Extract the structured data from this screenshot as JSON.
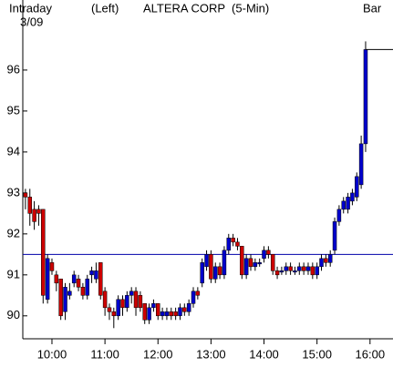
{
  "chart_data": {
    "type": "candlestick",
    "period": "Intraday",
    "date": "3/09",
    "axis_side": "(Left)",
    "title": "ALTERA CORP  (5-Min)",
    "chart_style": "Bar",
    "x": [
      570,
      575,
      580,
      585,
      590,
      595,
      600,
      605,
      610,
      615,
      620,
      625,
      630,
      635,
      640,
      645,
      650,
      655,
      660,
      665,
      670,
      675,
      680,
      685,
      690,
      695,
      700,
      705,
      710,
      715,
      720,
      725,
      730,
      735,
      740,
      745,
      750,
      755,
      760,
      765,
      770,
      775,
      780,
      785,
      790,
      795,
      800,
      805,
      810,
      815,
      820,
      825,
      830,
      835,
      840,
      845,
      850,
      855,
      860,
      865,
      870,
      875,
      880,
      885,
      890,
      895,
      900,
      905,
      910,
      915,
      920,
      925,
      930,
      935,
      940,
      945,
      950,
      955
    ],
    "open": [
      93.0,
      92.9,
      92.6,
      92.6,
      92.6,
      90.4,
      91.3,
      91.0,
      90.9,
      90.1,
      90.5,
      90.8,
      90.9,
      90.7,
      90.5,
      91.0,
      90.9,
      91.3,
      90.6,
      90.2,
      90.1,
      90.0,
      90.4,
      90.2,
      90.5,
      90.6,
      90.5,
      90.3,
      89.9,
      90.2,
      90.3,
      90.0,
      90.0,
      90.1,
      90.1,
      90.0,
      90.2,
      90.1,
      90.3,
      90.6,
      90.8,
      91.2,
      91.5,
      90.9,
      91.2,
      91.0,
      91.6,
      91.9,
      91.8,
      91.7,
      91.0,
      91.4,
      91.2,
      91.3,
      91.4,
      91.6,
      91.5,
      91.1,
      91.1,
      91.1,
      91.2,
      91.1,
      91.1,
      91.2,
      91.1,
      91.2,
      91.0,
      91.2,
      91.4,
      91.3,
      91.6,
      92.3,
      92.6,
      92.6,
      92.8,
      92.9,
      93.2,
      94.2
    ],
    "high": [
      93.1,
      93.1,
      92.8,
      92.7,
      92.6,
      91.5,
      91.4,
      91.1,
      90.9,
      90.8,
      90.8,
      91.1,
      91.0,
      90.8,
      91.0,
      91.2,
      91.3,
      91.3,
      90.7,
      90.3,
      90.2,
      90.5,
      90.5,
      90.6,
      90.7,
      90.7,
      90.6,
      90.3,
      90.3,
      90.4,
      90.3,
      90.2,
      90.2,
      90.2,
      90.2,
      90.3,
      90.3,
      90.4,
      90.7,
      90.7,
      91.4,
      91.6,
      91.6,
      91.3,
      91.3,
      91.7,
      92.0,
      92.0,
      91.9,
      91.7,
      91.5,
      91.5,
      91.4,
      91.4,
      91.7,
      91.7,
      91.5,
      91.2,
      91.2,
      91.3,
      91.3,
      91.2,
      91.3,
      91.3,
      91.3,
      91.3,
      91.3,
      91.5,
      91.5,
      91.6,
      92.4,
      92.7,
      92.9,
      93.0,
      93.1,
      93.5,
      94.4,
      96.7
    ],
    "low": [
      92.6,
      92.2,
      92.1,
      92.2,
      90.3,
      90.3,
      91.0,
      90.6,
      89.9,
      89.9,
      90.4,
      90.7,
      90.6,
      90.4,
      90.4,
      90.8,
      90.8,
      90.4,
      90.0,
      89.9,
      89.7,
      89.9,
      90.0,
      90.1,
      90.3,
      90.0,
      90.1,
      89.8,
      89.8,
      90.1,
      89.9,
      89.9,
      89.9,
      89.9,
      89.9,
      89.9,
      90.0,
      90.0,
      90.2,
      90.4,
      90.7,
      91.1,
      90.8,
      90.8,
      90.9,
      90.9,
      91.5,
      91.7,
      91.6,
      90.9,
      90.9,
      91.1,
      91.1,
      91.2,
      91.3,
      91.4,
      91.0,
      90.9,
      91.0,
      91.0,
      91.0,
      91.0,
      91.0,
      91.0,
      91.0,
      90.9,
      90.9,
      91.1,
      91.2,
      91.2,
      91.5,
      92.2,
      92.5,
      92.5,
      92.7,
      92.8,
      93.1,
      94.0
    ],
    "close": [
      92.9,
      92.5,
      92.3,
      92.5,
      90.5,
      91.4,
      91.1,
      90.8,
      90.0,
      90.7,
      90.6,
      91.0,
      90.7,
      90.5,
      90.9,
      91.1,
      91.1,
      90.5,
      90.2,
      90.1,
      90.0,
      90.4,
      90.2,
      90.5,
      90.6,
      90.2,
      90.2,
      89.9,
      90.2,
      90.3,
      90.0,
      90.1,
      90.1,
      90.0,
      90.0,
      90.2,
      90.1,
      90.3,
      90.6,
      90.5,
      91.3,
      91.5,
      90.9,
      91.2,
      91.0,
      91.6,
      91.9,
      91.8,
      91.7,
      91.0,
      91.4,
      91.2,
      91.3,
      91.3,
      91.6,
      91.5,
      91.1,
      91.0,
      91.1,
      91.2,
      91.1,
      91.1,
      91.2,
      91.1,
      91.2,
      91.0,
      91.2,
      91.4,
      91.3,
      91.5,
      92.3,
      92.6,
      92.8,
      92.9,
      93.0,
      93.4,
      94.2,
      96.5
    ],
    "up_color": "#0000cc",
    "down_color": "#cc0000",
    "reference_line": 91.5,
    "reference_color": "#0000aa",
    "last_price": 96.5,
    "xlim": [
      567,
      986
    ],
    "xticks": [
      {
        "value": 600,
        "label": "10:00"
      },
      {
        "value": 660,
        "label": "11:00"
      },
      {
        "value": 720,
        "label": "12:00"
      },
      {
        "value": 780,
        "label": "13:00"
      },
      {
        "value": 840,
        "label": "14:00"
      },
      {
        "value": 900,
        "label": "15:00"
      },
      {
        "value": 960,
        "label": "16:00"
      }
    ],
    "ylim": [
      89.44,
      97.71
    ],
    "yticks": [
      90,
      91,
      92,
      93,
      94,
      95,
      96
    ]
  }
}
